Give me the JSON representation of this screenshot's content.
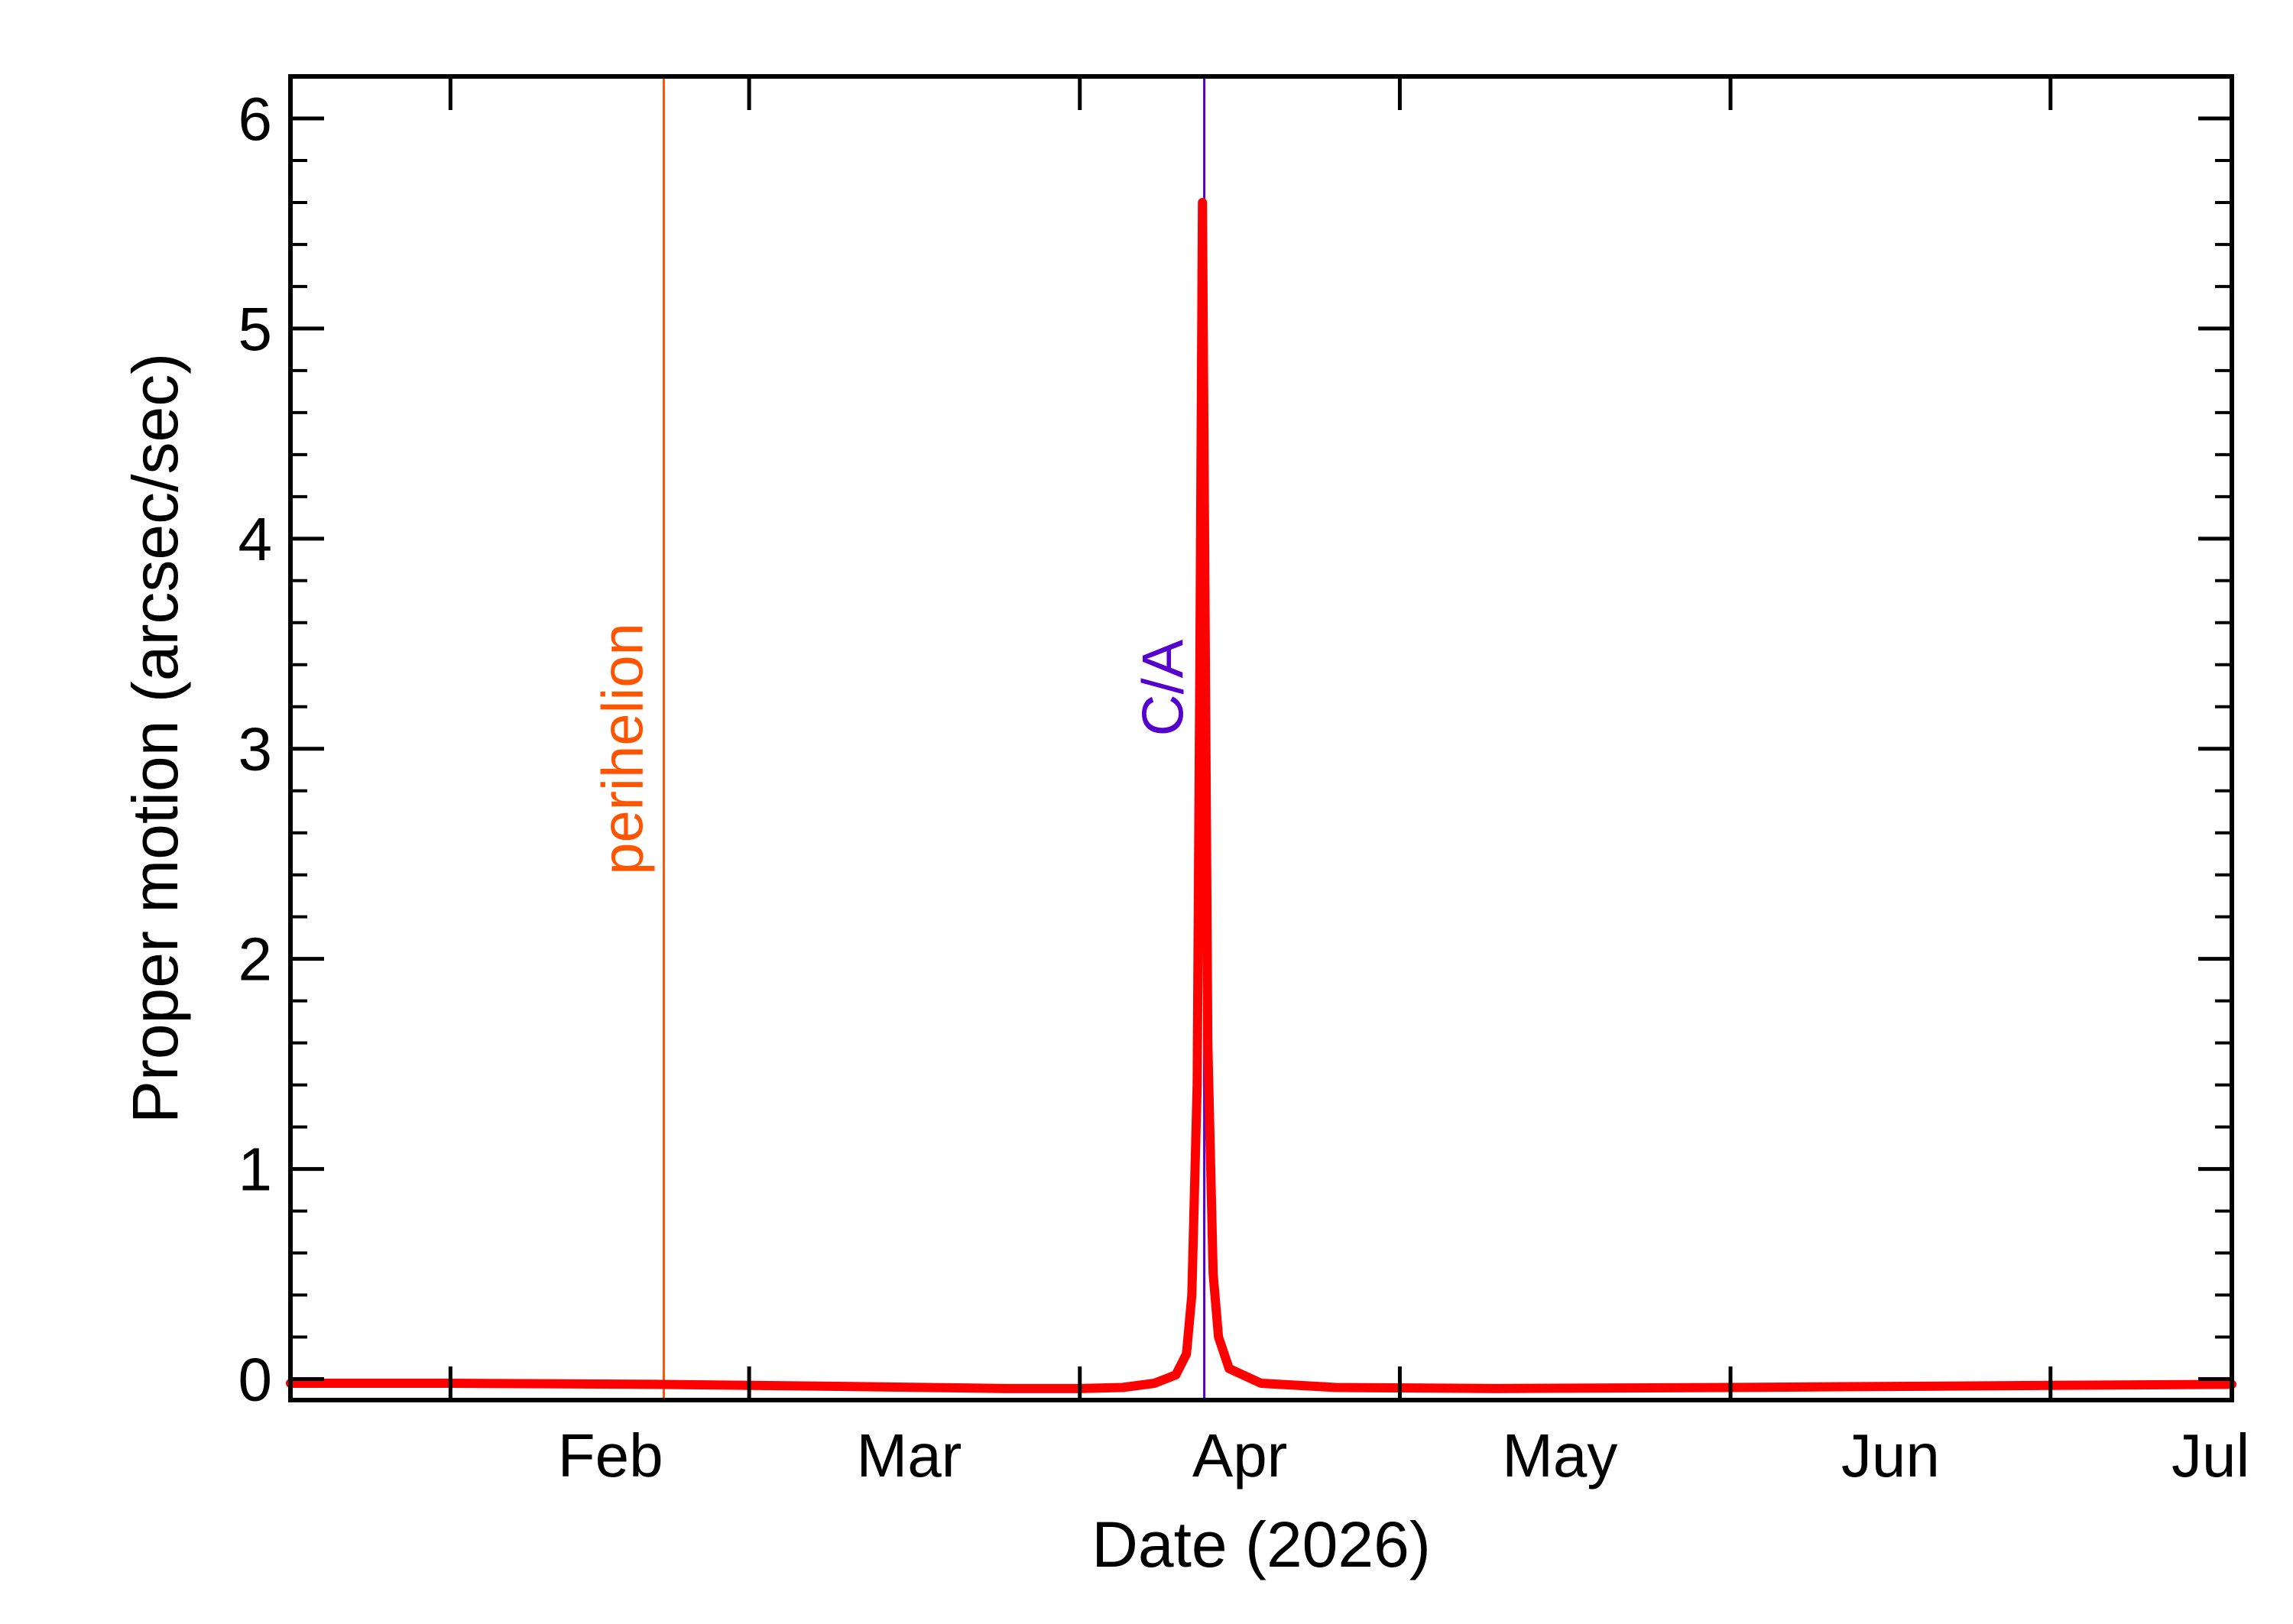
{
  "chart_data": {
    "type": "line",
    "title": "",
    "xlabel": "Date (2026)",
    "ylabel": "Proper motion (arcsec/sec)",
    "xlim": [
      "2026-01-17",
      "2026-07-18"
    ],
    "ylim": [
      -0.1,
      6.2
    ],
    "x_ticks": [
      {
        "date": "2026-02-01",
        "label": "Feb"
      },
      {
        "date": "2026-03-01",
        "label": "Mar"
      },
      {
        "date": "2026-04-01",
        "label": "Apr"
      },
      {
        "date": "2026-05-01",
        "label": "May"
      },
      {
        "date": "2026-06-01",
        "label": "Jun"
      },
      {
        "date": "2026-07-01",
        "label": "Jul"
      }
    ],
    "y_ticks": [
      0,
      1,
      2,
      3,
      4,
      5,
      6
    ],
    "grid": false,
    "series": [
      {
        "color": "#ff0000",
        "points": [
          [
            "2026-01-17",
            -0.02
          ],
          [
            "2026-02-01",
            -0.02
          ],
          [
            "2026-02-20",
            -0.025
          ],
          [
            "2026-03-10",
            -0.035
          ],
          [
            "2026-03-25",
            -0.045
          ],
          [
            "2026-04-01",
            -0.045
          ],
          [
            "2026-04-05",
            -0.04
          ],
          [
            "2026-04-08",
            -0.02
          ],
          [
            "2026-04-10",
            0.02
          ],
          [
            "2026-04-11",
            0.12
          ],
          [
            "2026-04-11T12:00",
            0.4
          ],
          [
            "2026-04-12",
            1.4
          ],
          [
            "2026-04-12T06:00",
            3.4
          ],
          [
            "2026-04-12T12:00",
            5.6
          ],
          [
            "2026-04-12T18:00",
            3.6
          ],
          [
            "2026-04-13",
            1.6
          ],
          [
            "2026-04-13T12:00",
            0.5
          ],
          [
            "2026-04-14",
            0.2
          ],
          [
            "2026-04-15",
            0.05
          ],
          [
            "2026-04-18",
            -0.02
          ],
          [
            "2026-04-25",
            -0.04
          ],
          [
            "2026-05-10",
            -0.045
          ],
          [
            "2026-06-01",
            -0.04
          ],
          [
            "2026-07-01",
            -0.03
          ],
          [
            "2026-07-18",
            -0.025
          ]
        ]
      }
    ],
    "vlines": [
      {
        "date": "2026-02-21",
        "label": "perihelion",
        "color": "#ff5500"
      },
      {
        "date": "2026-04-12T16:00",
        "label": "C/A",
        "color": "#5500cc"
      }
    ]
  }
}
